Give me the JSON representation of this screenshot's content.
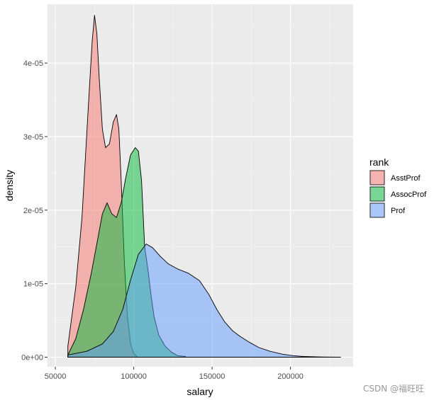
{
  "chart_data": {
    "type": "area",
    "xlabel": "salary",
    "ylabel": "density",
    "xlim": [
      45000,
      240000
    ],
    "ylim": [
      -1.3e-06,
      4.8e-05
    ],
    "x_ticks": [
      50000,
      100000,
      150000,
      200000
    ],
    "x_tick_labels": [
      "50000",
      "100000",
      "150000",
      "200000"
    ],
    "y_ticks": [
      0,
      1e-05,
      2e-05,
      3e-05,
      4e-05
    ],
    "y_tick_labels": [
      "0e+00",
      "1e-05",
      "2e-05",
      "3e-05",
      "4e-05"
    ],
    "grid": true,
    "legend": {
      "title": "rank",
      "position": "right"
    },
    "series": [
      {
        "name": "AsstProf",
        "color": "#F8766D",
        "x": [
          58000,
          63000,
          67000,
          71000,
          73500,
          75000,
          76500,
          78000,
          80000,
          82000,
          84500,
          87000,
          89000,
          90500,
          92000,
          94000,
          96000,
          98000,
          100000,
          102000
        ],
        "y": [
          1.5e-06,
          9.5e-06,
          1.9e-05,
          3.4e-05,
          4.3e-05,
          4.65e-05,
          4.4e-05,
          3.8e-05,
          3.1e-05,
          2.85e-05,
          2.9e-05,
          3.2e-05,
          3.3e-05,
          3.1e-05,
          2.4e-05,
          1.3e-05,
          5.5e-06,
          1.8e-06,
          5e-07,
          1e-07
        ]
      },
      {
        "name": "AssocProf",
        "color": "#00BA38",
        "x": [
          58000,
          63000,
          68000,
          73000,
          77000,
          80000,
          83000,
          86000,
          89000,
          92000,
          95000,
          98000,
          101000,
          103000,
          105000,
          107000,
          109000,
          111000,
          113000,
          116000,
          120000,
          124000,
          128000,
          133000
        ],
        "y": [
          3e-07,
          2.5e-06,
          6.5e-06,
          1.15e-05,
          1.6e-05,
          1.95e-05,
          2.1e-05,
          1.95e-05,
          1.9e-05,
          2.1e-05,
          2.45e-05,
          2.75e-05,
          2.85e-05,
          2.8e-05,
          2.4e-05,
          1.5e-05,
          1.2e-05,
          8.5e-06,
          5.5e-06,
          3e-06,
          1.5e-06,
          7e-07,
          2e-07,
          1e-07
        ]
      },
      {
        "name": "Prof",
        "color": "#619CFF",
        "x": [
          58000,
          70000,
          80000,
          87000,
          93000,
          98000,
          103000,
          108000,
          112000,
          117000,
          122000,
          128000,
          135000,
          142000,
          148000,
          153000,
          158000,
          163000,
          168000,
          174000,
          180000,
          187000,
          195000,
          202000,
          208000,
          215000,
          222000,
          230000,
          232000
        ],
        "y": [
          3e-07,
          8e-07,
          1.8e-06,
          3.5e-06,
          6.5e-06,
          1.05e-05,
          1.4e-05,
          1.54e-05,
          1.49e-05,
          1.37e-05,
          1.27e-05,
          1.2e-05,
          1.14e-05,
          1.04e-05,
          8.5e-06,
          6.5e-06,
          4.8e-06,
          3.6e-06,
          2.8e-06,
          2e-06,
          1.3e-06,
          8e-07,
          4e-07,
          2e-07,
          1e-07,
          5e-08,
          2e-08,
          1e-08,
          0.0
        ]
      }
    ]
  },
  "watermark": "CSDN @福旺旺"
}
